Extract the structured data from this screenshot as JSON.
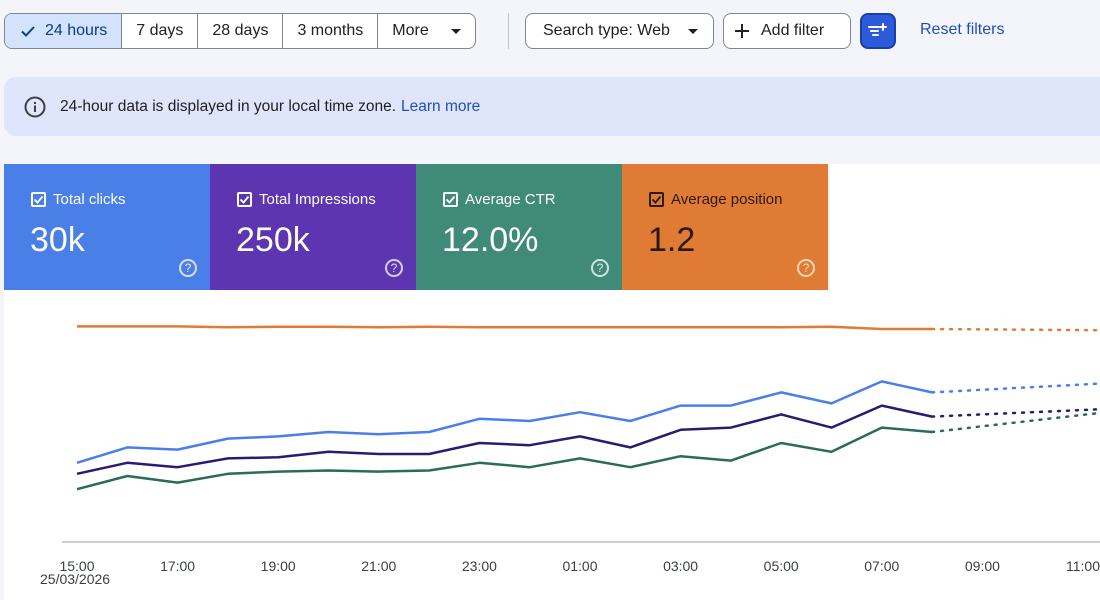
{
  "toolbar": {
    "ranges": [
      {
        "label": "24 hours",
        "selected": true
      },
      {
        "label": "7 days",
        "selected": false
      },
      {
        "label": "28 days",
        "selected": false
      },
      {
        "label": "3 months",
        "selected": false
      }
    ],
    "more_label": "More",
    "search_type_label": "Search type: Web",
    "add_filter_label": "Add filter",
    "reset_label": "Reset filters",
    "accent": "#2b5bd8"
  },
  "banner": {
    "text": "24-hour data is displayed in your local time zone.",
    "link": "Learn more"
  },
  "metrics": [
    {
      "label": "Total clicks",
      "value": "30k",
      "checked": true,
      "color": "#4a7fe8"
    },
    {
      "label": "Total Impressions",
      "value": "250k",
      "checked": true,
      "color": "#5e35b1"
    },
    {
      "label": "Average CTR",
      "value": "12.0%",
      "checked": true,
      "color": "#3f8a78"
    },
    {
      "label": "Average position",
      "value": "1.2",
      "checked": true,
      "color": "#e07b36"
    }
  ],
  "chart_data": {
    "type": "line",
    "x": [
      "15:00",
      "16:00",
      "17:00",
      "18:00",
      "19:00",
      "20:00",
      "21:00",
      "22:00",
      "23:00",
      "00:00",
      "01:00",
      "02:00",
      "03:00",
      "04:00",
      "05:00",
      "06:00",
      "07:00",
      "08:00"
    ],
    "x_tick_labels": [
      "15:00",
      "17:00",
      "19:00",
      "21:00",
      "23:00",
      "01:00",
      "03:00",
      "05:00",
      "07:00",
      "09:00",
      "11:00"
    ],
    "x_first_date": "25/03/2026",
    "grid": false,
    "series": [
      {
        "color": "#e07b36",
        "values": [
          88,
          88,
          88,
          87.6,
          87.8,
          87.8,
          87.6,
          87.8,
          87.6,
          87.6,
          87.6,
          87.6,
          87.6,
          87.6,
          87.6,
          87.8,
          86.8,
          86.8
        ],
        "projection": true
      },
      {
        "color": "#4a7fe8",
        "values": [
          26,
          33,
          32,
          37,
          38,
          40,
          39,
          40,
          46,
          45,
          49,
          45,
          52,
          52,
          58,
          53,
          63,
          58
        ],
        "projection": true
      },
      {
        "color": "#2b1b70",
        "values": [
          21,
          26,
          24,
          28,
          28.5,
          31,
          30,
          30,
          35,
          34,
          38,
          33,
          41,
          42,
          48,
          42,
          52,
          47
        ],
        "projection": true
      },
      {
        "color": "#2a6b5a",
        "values": [
          14,
          20,
          17,
          21,
          22,
          22.5,
          22,
          22.5,
          26,
          24,
          28,
          24,
          29,
          27,
          35,
          31,
          42,
          40
        ],
        "projection": true
      }
    ]
  }
}
